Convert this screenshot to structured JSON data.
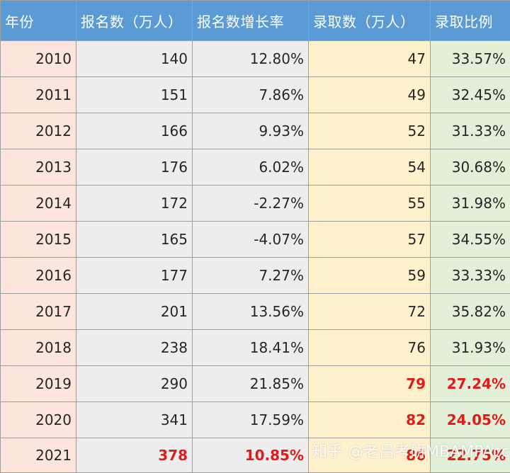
{
  "table": {
    "headers": [
      "年份",
      "报名数（万人）",
      "报名数增长率",
      "录取数（万人）",
      "录取比例"
    ],
    "rows": [
      {
        "year": "2010",
        "applicants": "140",
        "growth": "12.80%",
        "admitted": "47",
        "ratio": "33.57%"
      },
      {
        "year": "2011",
        "applicants": "151",
        "growth": "7.86%",
        "admitted": "49",
        "ratio": "32.45%"
      },
      {
        "year": "2012",
        "applicants": "166",
        "growth": "9.93%",
        "admitted": "52",
        "ratio": "31.33%"
      },
      {
        "year": "2013",
        "applicants": "176",
        "growth": "6.02%",
        "admitted": "54",
        "ratio": "30.68%"
      },
      {
        "year": "2014",
        "applicants": "172",
        "growth": "-2.27%",
        "admitted": "55",
        "ratio": "31.98%"
      },
      {
        "year": "2015",
        "applicants": "165",
        "growth": "-4.07%",
        "admitted": "57",
        "ratio": "34.55%"
      },
      {
        "year": "2016",
        "applicants": "177",
        "growth": "7.27%",
        "admitted": "59",
        "ratio": "33.33%"
      },
      {
        "year": "2017",
        "applicants": "201",
        "growth": "13.56%",
        "admitted": "72",
        "ratio": "35.82%"
      },
      {
        "year": "2018",
        "applicants": "238",
        "growth": "18.41%",
        "admitted": "76",
        "ratio": "31.93%"
      },
      {
        "year": "2019",
        "applicants": "290",
        "growth": "21.85%",
        "admitted": "79",
        "ratio": "27.24%"
      },
      {
        "year": "2020",
        "applicants": "341",
        "growth": "17.59%",
        "admitted": "82",
        "ratio": "24.05%"
      },
      {
        "year": "2021",
        "applicants": "378",
        "growth": "10.85%",
        "admitted": "86",
        "ratio": "22.75%"
      }
    ]
  },
  "watermark": "知乎 @老吕考研MBAMPAcc",
  "colors": {
    "header_bg": "#5b9bd5",
    "year_col_bg": "#fbe5dc",
    "applicants_col_bg": "#ededed",
    "admitted_col_bg": "#fff1cc",
    "ratio_col_bg": "#e2efd9",
    "highlight_text": "#e11a1a"
  }
}
